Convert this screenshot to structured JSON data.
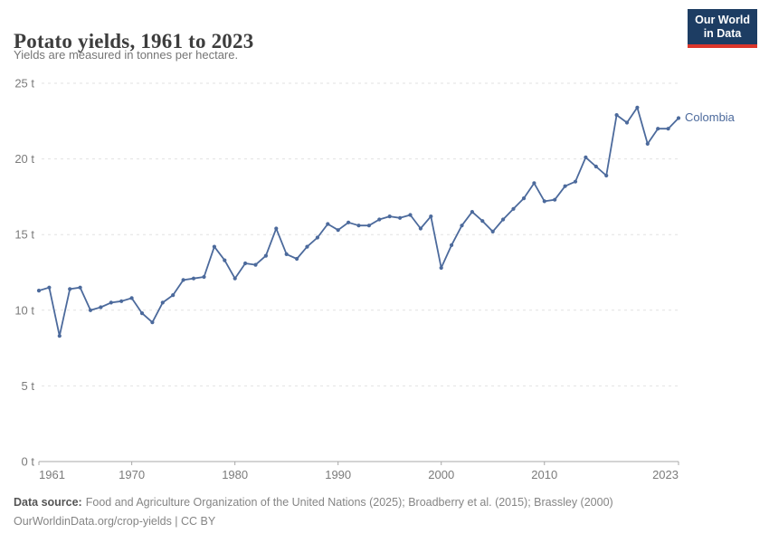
{
  "header": {
    "title": "Potato yields, 1961 to 2023",
    "subtitle": "Yields are measured in tonnes per hectare.",
    "logo": {
      "line1": "Our World",
      "line2": "in Data"
    }
  },
  "entity_label": "Colombia",
  "chart_data": {
    "type": "line",
    "title": "Potato yields, 1961 to 2023",
    "xlabel": "",
    "ylabel": "tonnes per hectare",
    "xlim": [
      1961,
      2023
    ],
    "ylim": [
      0,
      25
    ],
    "x_ticks": [
      1961,
      1970,
      1980,
      1990,
      2000,
      2010,
      2023
    ],
    "y_ticks": [
      0,
      5,
      10,
      15,
      20,
      25
    ],
    "y_tick_suffix": " t",
    "grid": true,
    "legend_position": "end-of-line",
    "series": [
      {
        "name": "Colombia",
        "color": "#4c6a9c",
        "x": [
          1961,
          1962,
          1963,
          1964,
          1965,
          1966,
          1967,
          1968,
          1969,
          1970,
          1971,
          1972,
          1973,
          1974,
          1975,
          1976,
          1977,
          1978,
          1979,
          1980,
          1981,
          1982,
          1983,
          1984,
          1985,
          1986,
          1987,
          1988,
          1989,
          1990,
          1991,
          1992,
          1993,
          1994,
          1995,
          1996,
          1997,
          1998,
          1999,
          2000,
          2001,
          2002,
          2003,
          2004,
          2005,
          2006,
          2007,
          2008,
          2009,
          2010,
          2011,
          2012,
          2013,
          2014,
          2015,
          2016,
          2017,
          2018,
          2019,
          2020,
          2021,
          2022,
          2023
        ],
        "values": [
          11.3,
          11.5,
          8.3,
          11.4,
          11.5,
          10.0,
          10.2,
          10.5,
          10.6,
          10.8,
          9.8,
          9.2,
          10.5,
          11.0,
          12.0,
          12.1,
          12.2,
          14.2,
          13.3,
          12.1,
          13.1,
          13.0,
          13.6,
          15.4,
          13.7,
          13.4,
          14.2,
          14.8,
          15.7,
          15.3,
          15.8,
          15.6,
          15.6,
          16.0,
          16.2,
          16.1,
          16.3,
          15.4,
          16.2,
          12.8,
          14.3,
          15.6,
          16.5,
          15.9,
          15.2,
          16.0,
          16.7,
          17.4,
          18.4,
          17.2,
          17.3,
          18.2,
          18.5,
          20.1,
          19.5,
          18.9,
          22.9,
          22.4,
          23.4,
          21.0,
          22.0,
          22.0,
          22.7
        ]
      }
    ]
  },
  "footer": {
    "datasource_label": "Data source:",
    "datasource_text": "Food and Agriculture Organization of the United Nations (2025); Broadberry et al. (2015); Brassley (2000)",
    "url_line": "OurWorldinData.org/crop-yields | CC BY"
  },
  "colors": {
    "line": "#4c6a9c",
    "gridline": "#e2e2e2",
    "axis": "#a8a8a8",
    "tick_label": "#7b7b7b",
    "logo_bg": "#1d3d63",
    "logo_red": "#dc362b"
  }
}
